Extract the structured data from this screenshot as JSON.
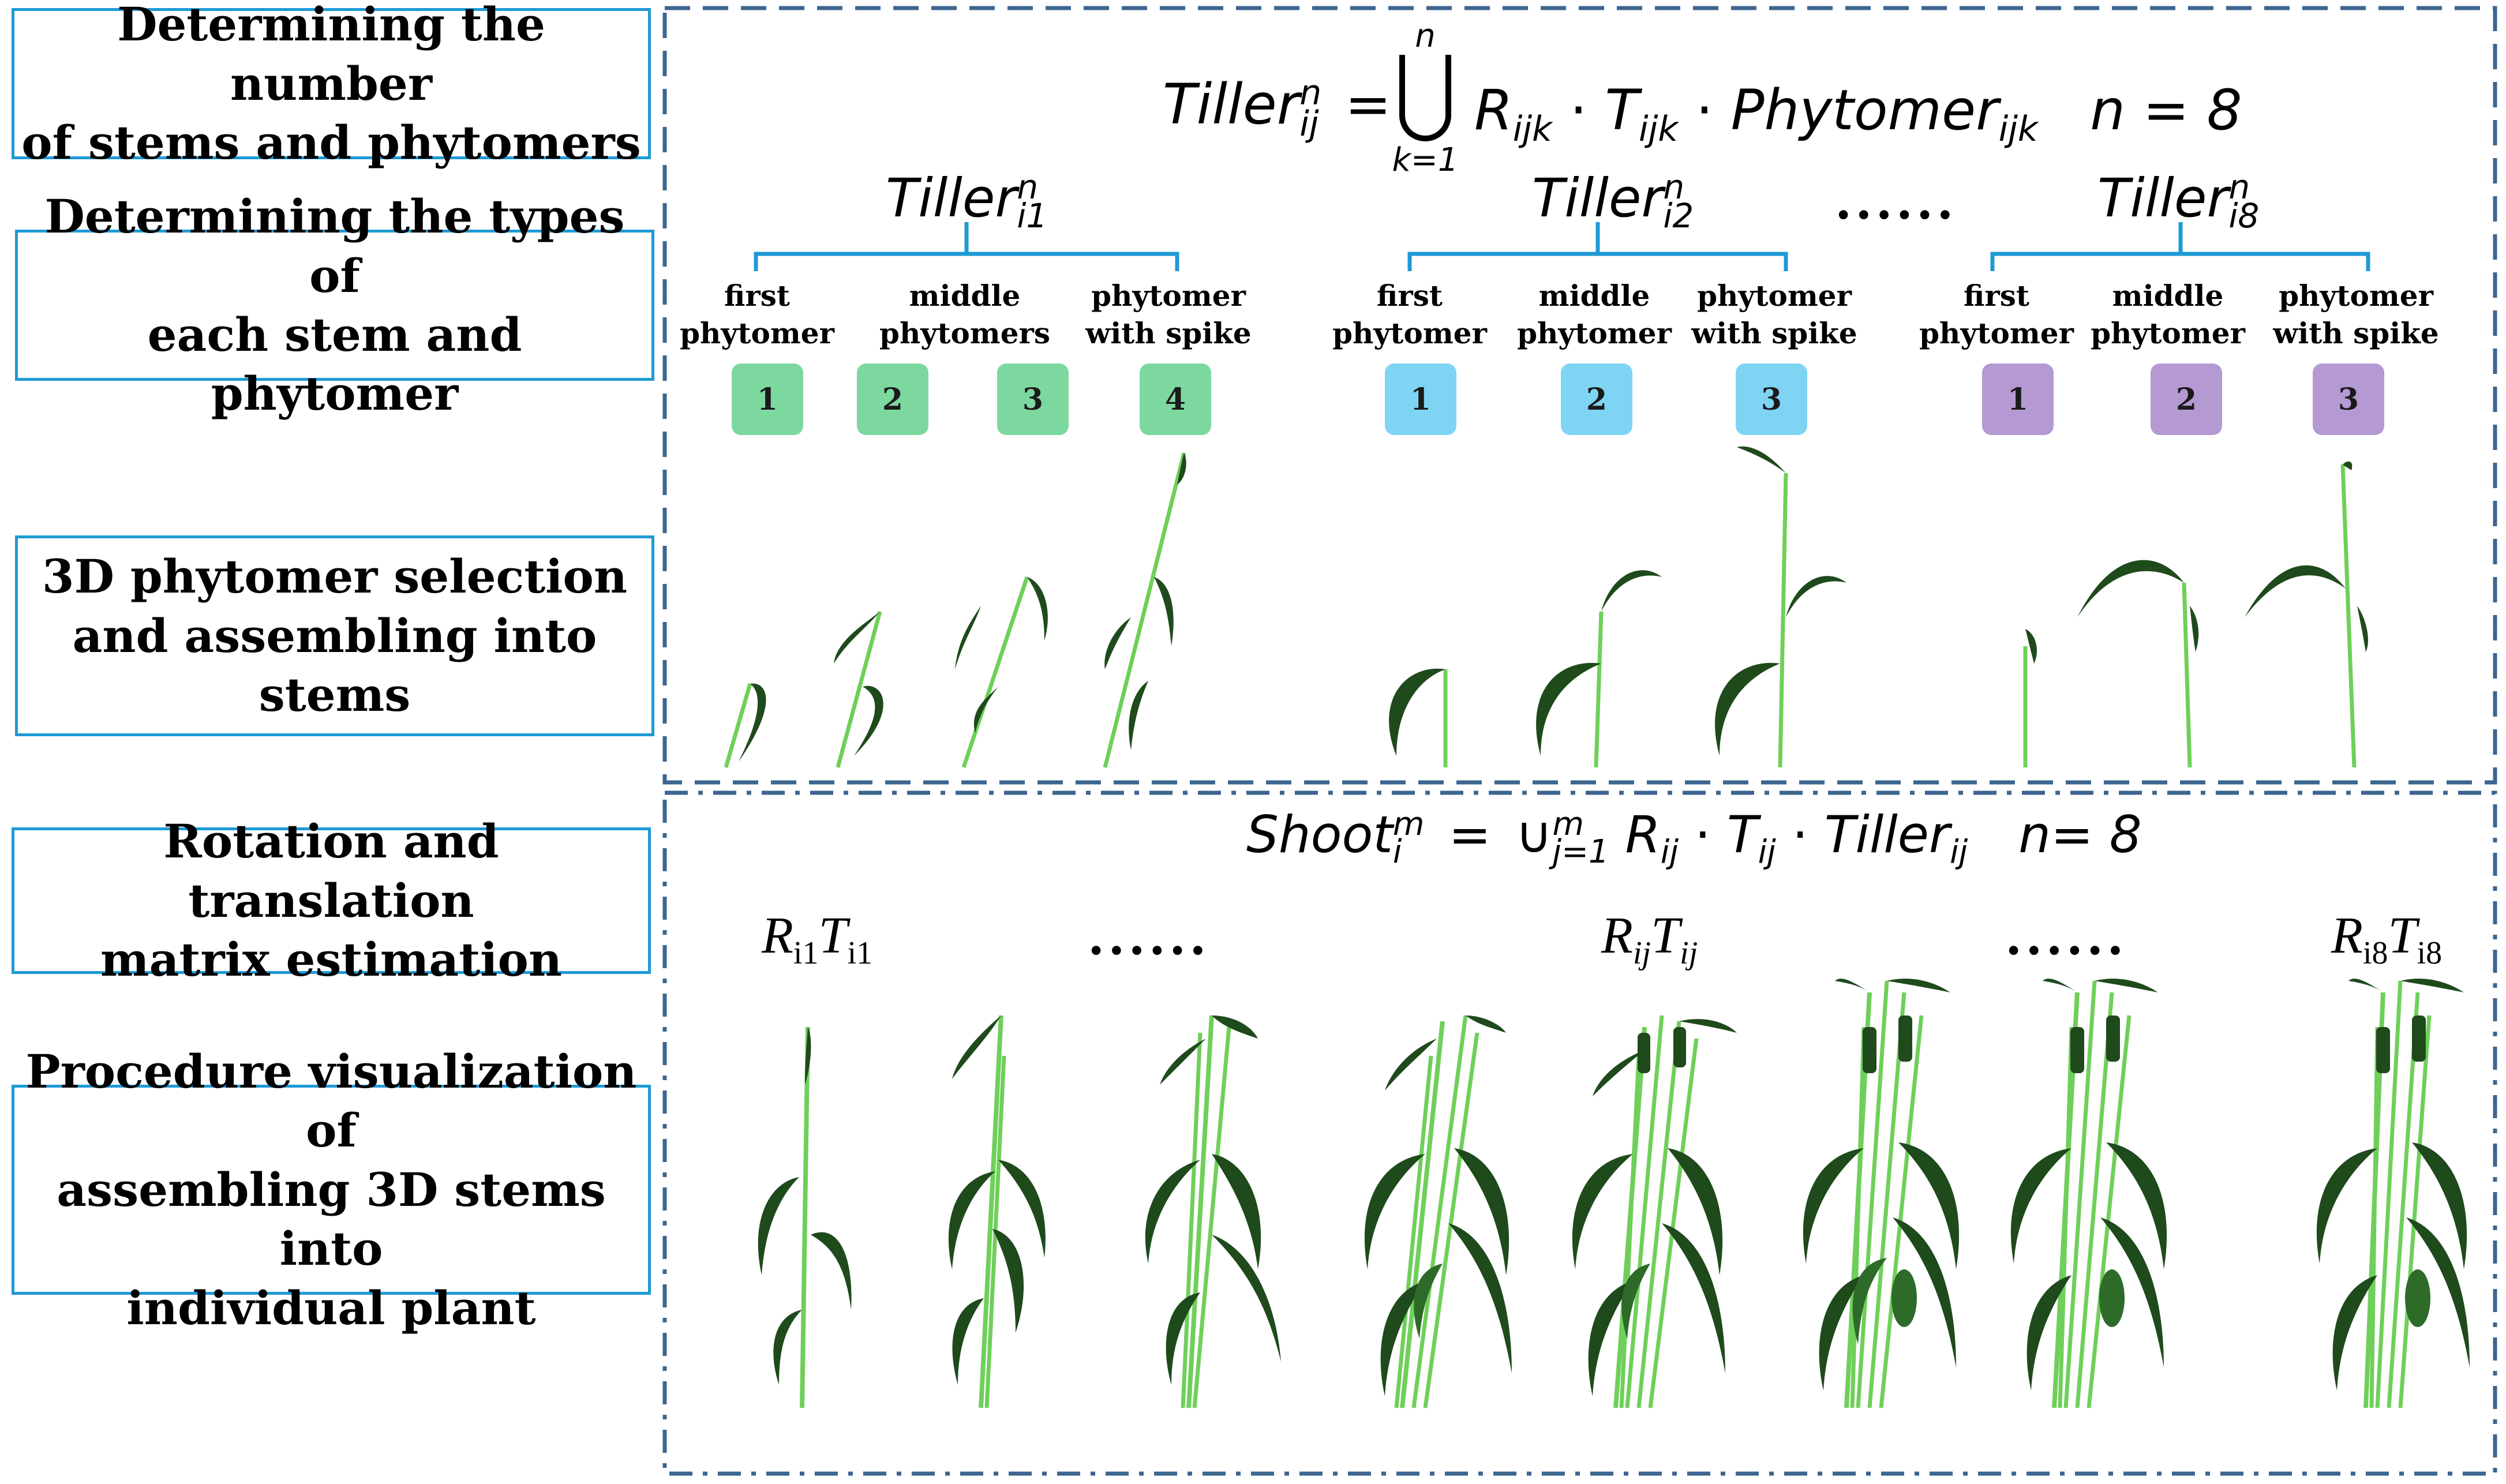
{
  "steps": [
    {
      "lines": [
        "Determining the number",
        "of stems and phytomers"
      ]
    },
    {
      "lines": [
        "Determining the types of",
        "each stem and phytomer"
      ]
    },
    {
      "lines": [
        "3D phytomer selection",
        "and assembling into",
        "stems"
      ]
    },
    {
      "lines": [
        "Rotation and translation",
        "matrix estimation"
      ]
    },
    {
      "lines": [
        "Procedure visualization of",
        "assembling 3D stems into",
        "individual plant"
      ]
    }
  ],
  "top_equation": {
    "lhs": "Tiller",
    "lhs_sup": "n",
    "lhs_sub": "ij",
    "eq": "=",
    "union_sup": "n",
    "union_sub": "k=1",
    "rhs": "R",
    "rhs_sub1": "ijk",
    "dot1": "·",
    "t": "T",
    "t_sub": "ijk",
    "dot2": "·",
    "phy": "Phytomer",
    "phy_sub": "ijk",
    "n_label": "n = 8"
  },
  "tillers": [
    {
      "name": "Tiller",
      "sup": "n",
      "sub": "i1",
      "types": [
        [
          "first",
          "phytomer"
        ],
        [
          "middle",
          "phytomers"
        ],
        [
          "phytomer",
          "with spike"
        ]
      ],
      "badges": [
        "1",
        "2",
        "3",
        "4"
      ],
      "color": "#7dd8a0"
    },
    {
      "name": "Tiller",
      "sup": "n",
      "sub": "i2",
      "types": [
        [
          "first",
          "phytomer"
        ],
        [
          "middle",
          "phytomer"
        ],
        [
          "phytomer",
          "with spike"
        ]
      ],
      "badges": [
        "1",
        "2",
        "3"
      ],
      "color": "#7fd4f4"
    },
    {
      "name": "Tiller",
      "sup": "n",
      "sub": "i8",
      "types": [
        [
          "first",
          "phytomer"
        ],
        [
          "middle",
          "phytomer"
        ],
        [
          "phytomer",
          "with spike"
        ]
      ],
      "badges": [
        "1",
        "2",
        "3"
      ],
      "color": "#b499d2"
    }
  ],
  "ellipsis": "......",
  "shoot_equation": {
    "lhs": "Shoot",
    "lhs_sup": "m",
    "lhs_sub": "i",
    "eq": "=",
    "union": "∪",
    "union_sup": "m",
    "union_sub": "j=1",
    "r": "R",
    "r_sub": "ij",
    "dot": "·",
    "t": "T",
    "t_sub": "ij",
    "tiller": "Tiller",
    "tiller_sub": "ij",
    "n_label": "n= 8"
  },
  "rt_labels": [
    {
      "r": "R",
      "r_sub": "i1",
      "t": "T",
      "t_sub": "i1"
    },
    {
      "r": "R",
      "r_sub": "ij",
      "t": "T",
      "t_sub": "ij"
    },
    {
      "r": "R",
      "r_sub": "i8",
      "t": "T",
      "t_sub": "i8"
    }
  ],
  "colors": {
    "box_border": "#1e9ad6",
    "panel_border": "#3c6690",
    "bracket": "#1e9ad6",
    "stem": "#6fcf5a",
    "leaf": "#1f4a1c",
    "leaf_light": "#2e6b28"
  }
}
